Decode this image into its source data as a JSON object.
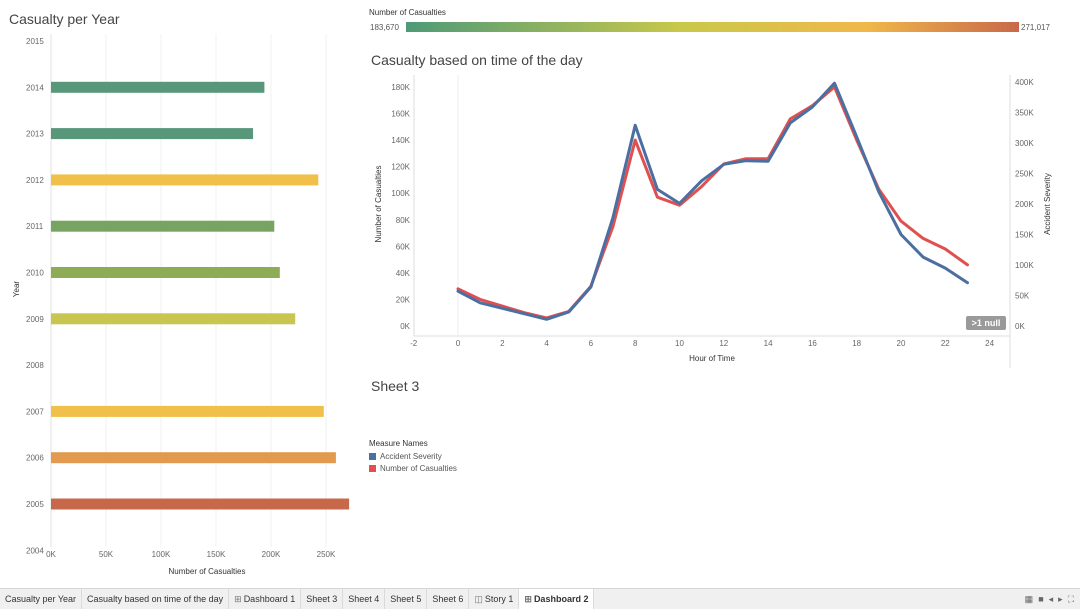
{
  "titles": {
    "left": "Casualty per Year",
    "right": "Casualty based on time of the day",
    "sheet3": "Sheet 3"
  },
  "color_legend": {
    "title": "Number of Casualties",
    "min_label": "183,670",
    "max_label": "271,017",
    "stops": [
      "#4e9a78",
      "#c9c84a",
      "#f0b84a",
      "#c8684a"
    ]
  },
  "measure_legend": {
    "title": "Measure Names",
    "items": [
      {
        "label": "Accident Severity",
        "color": "#4a6fa0"
      },
      {
        "label": "Number of Casualties",
        "color": "#e05050"
      }
    ]
  },
  "null_badge": ">1 null",
  "chart_data": [
    {
      "type": "bar",
      "orientation": "horizontal",
      "title": "Casualty per Year",
      "xlabel": "Number of Casualties",
      "ylabel": "Year",
      "categories": [
        "2015",
        "2014",
        "2013",
        "2012",
        "2011",
        "2010",
        "2009",
        "2008",
        "2007",
        "2006",
        "2005",
        "2004"
      ],
      "values": [
        null,
        194000,
        183670,
        243000,
        203000,
        208000,
        222000,
        null,
        248000,
        259000,
        271017,
        null
      ],
      "colors": [
        "",
        "#58977a",
        "#58977a",
        "#f0c04a",
        "#78a462",
        "#8eab55",
        "#c8c650",
        "",
        "#f0c04a",
        "#e29a50",
        "#c8684a",
        ""
      ],
      "xlim": [
        0,
        280000
      ],
      "xticks": [
        "0K",
        "50K",
        "100K",
        "150K",
        "200K",
        "250K"
      ],
      "xtick_values": [
        0,
        50000,
        100000,
        150000,
        200000,
        250000
      ]
    },
    {
      "type": "line",
      "title": "Casualty based on time of the day",
      "xlabel": "Hour of Time",
      "ylabel": "Number of Casualties",
      "y2label": "Accident Severity",
      "x": [
        0,
        1,
        2,
        3,
        4,
        5,
        6,
        7,
        8,
        9,
        10,
        11,
        12,
        13,
        14,
        15,
        16,
        17,
        18,
        19,
        20,
        21,
        22,
        23
      ],
      "xlim": [
        -2,
        25
      ],
      "xticks": [
        "-2",
        "0",
        "2",
        "4",
        "6",
        "8",
        "10",
        "12",
        "14",
        "16",
        "18",
        "20",
        "22",
        "24"
      ],
      "xtick_values": [
        -2,
        0,
        2,
        4,
        6,
        8,
        10,
        12,
        14,
        16,
        18,
        20,
        22,
        24
      ],
      "ylim": [
        0,
        185000
      ],
      "yticks": [
        "0K",
        "20K",
        "40K",
        "60K",
        "80K",
        "100K",
        "120K",
        "140K",
        "160K",
        "180K"
      ],
      "ytick_values": [
        0,
        20000,
        40000,
        60000,
        80000,
        100000,
        120000,
        140000,
        160000,
        180000
      ],
      "y2lim": [
        0,
        410000
      ],
      "y2ticks": [
        "0K",
        "50K",
        "100K",
        "150K",
        "200K",
        "250K",
        "300K",
        "350K",
        "400K"
      ],
      "y2tick_values": [
        0,
        50000,
        100000,
        150000,
        200000,
        250000,
        300000,
        350000,
        400000
      ],
      "series": [
        {
          "name": "Number of Casualties",
          "color": "#e05050",
          "axis": "left",
          "values": [
            28000,
            20000,
            15000,
            10000,
            6000,
            11000,
            30000,
            75000,
            140000,
            97000,
            91000,
            105000,
            122000,
            126000,
            126000,
            156000,
            166000,
            180000,
            140000,
            103000,
            79000,
            66000,
            58000,
            46000
          ]
        },
        {
          "name": "Accident Severity",
          "color": "#4a6fa0",
          "axis": "right",
          "values": [
            57000,
            38000,
            29000,
            20000,
            11000,
            23000,
            64000,
            178000,
            329000,
            224000,
            201000,
            238000,
            265000,
            271000,
            270000,
            333000,
            359000,
            398000,
            310000,
            220000,
            150000,
            113000,
            95000,
            71000
          ]
        }
      ]
    }
  ]
}
